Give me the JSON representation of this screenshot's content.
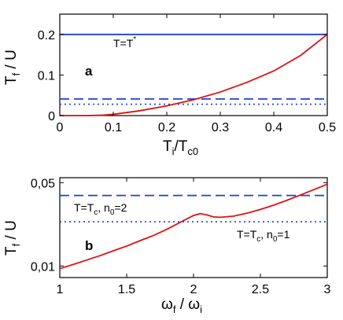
{
  "colors": {
    "blue": "#1f3fd8",
    "red": "#e01010",
    "axis": "#000000"
  },
  "panel_labels": {
    "a": "a",
    "b": "b"
  },
  "annotations": {
    "a_tstar_base": "T=T",
    "a_tstar_sup": "*",
    "b_n2_part1": "T=T",
    "b_n2_sub1": "c",
    "b_n2_part2": ", n",
    "b_n2_sub2": "0",
    "b_n2_part3": "=2",
    "b_n1_part1": "T=T",
    "b_n1_sub1": "c",
    "b_n1_part2": ", n",
    "b_n1_sub2": "0",
    "b_n1_part3": "=1"
  },
  "axis_labels": {
    "a_y_main": "T",
    "a_y_sub": "f",
    "a_y_rest": " / U",
    "a_x_main": "T",
    "a_x_sub1": "i",
    "a_x_mid": "/T",
    "a_x_sub2": "c0",
    "b_y_main": "T",
    "b_y_sub": "f",
    "b_y_rest": " / U",
    "b_x_main": "ω",
    "b_x_sub1": "f",
    "b_x_mid": " / ω",
    "b_x_sub2": "i"
  },
  "chart_data": [
    {
      "id": "a",
      "type": "line",
      "xlim": [
        0,
        0.5
      ],
      "ylim": [
        0,
        0.25
      ],
      "x_ticks": [
        0,
        0.1,
        0.2,
        0.3,
        0.4,
        0.5
      ],
      "x_tick_labels": [
        "0",
        "0.1",
        "0.2",
        "0.3",
        "0.4",
        "0.5"
      ],
      "y_ticks": [
        0,
        0.1,
        0.2
      ],
      "y_tick_labels": [
        "0",
        "0.1",
        "0.2"
      ],
      "grid": false,
      "series": [
        {
          "style": "solid",
          "color": "blue",
          "x": [
            0,
            0.5
          ],
          "y": [
            0.2,
            0.2
          ]
        },
        {
          "style": "dashed",
          "color": "blue",
          "x": [
            0,
            0.5
          ],
          "y": [
            0.041,
            0.041
          ]
        },
        {
          "style": "dotted",
          "color": "blue",
          "x": [
            0,
            0.5
          ],
          "y": [
            0.028,
            0.028
          ]
        },
        {
          "style": "solid",
          "color": "red",
          "x": [
            0.0,
            0.05,
            0.08,
            0.1,
            0.15,
            0.2,
            0.25,
            0.3,
            0.35,
            0.4,
            0.45,
            0.5
          ],
          "y": [
            0.0,
            0.0,
            0.001,
            0.003,
            0.012,
            0.024,
            0.039,
            0.058,
            0.082,
            0.11,
            0.148,
            0.2
          ]
        }
      ]
    },
    {
      "id": "b",
      "type": "line",
      "xlim": [
        1,
        3
      ],
      "ylim": [
        0.008,
        0.055
      ],
      "y_scale": "log",
      "x_ticks": [
        1,
        1.5,
        2,
        2.5,
        3
      ],
      "x_tick_labels": [
        "1",
        "1.5",
        "2",
        "2.5",
        "3"
      ],
      "y_ticks": [
        0.01,
        0.05
      ],
      "y_tick_labels": [
        "0,01",
        "0,05"
      ],
      "grid": false,
      "series": [
        {
          "style": "dashed",
          "color": "blue",
          "x": [
            1,
            3
          ],
          "y": [
            0.039,
            0.039
          ]
        },
        {
          "style": "dotted",
          "color": "blue",
          "x": [
            1,
            3
          ],
          "y": [
            0.0235,
            0.0235
          ]
        },
        {
          "style": "solid",
          "color": "red",
          "x": [
            1.0,
            1.1,
            1.2,
            1.3,
            1.4,
            1.5,
            1.6,
            1.7,
            1.8,
            1.9,
            2.0,
            2.05,
            2.1,
            2.15,
            2.2,
            2.3,
            2.4,
            2.5,
            2.6,
            2.7,
            2.8,
            2.9,
            3.0
          ],
          "y": [
            0.0095,
            0.0103,
            0.0112,
            0.0122,
            0.0134,
            0.0147,
            0.0163,
            0.018,
            0.0203,
            0.0232,
            0.0265,
            0.0275,
            0.0268,
            0.0258,
            0.0256,
            0.0262,
            0.0277,
            0.0298,
            0.0324,
            0.0356,
            0.0394,
            0.0437,
            0.0485
          ]
        }
      ]
    }
  ]
}
